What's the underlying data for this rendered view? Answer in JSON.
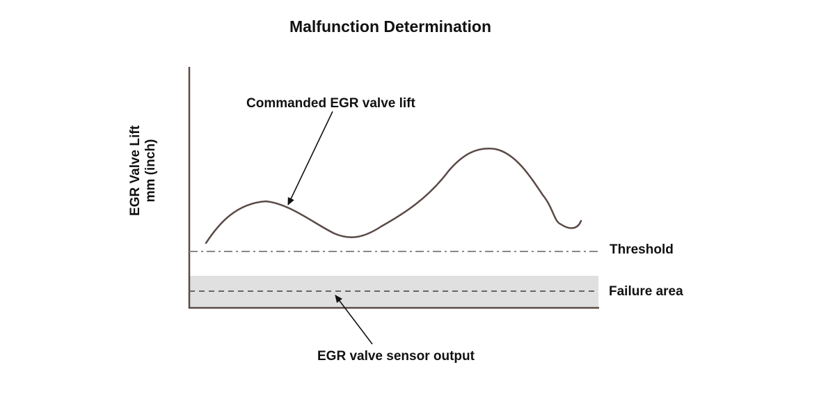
{
  "title": "Malfunction Determination",
  "axis": {
    "y_label_line1": "EGR Valve Lift",
    "y_label_line2": "mm (inch)"
  },
  "labels": {
    "commanded": "Commanded EGR valve lift",
    "threshold": "Threshold",
    "failure_area": "Failure area",
    "sensor_output": "EGR valve sensor output"
  },
  "colors": {
    "axis": "#5a4a46",
    "commanded_curve": "#5a4a46",
    "threshold_line": "#888888",
    "failure_fill": "#e0e0e0",
    "sensor_line": "#666666",
    "text": "#111111"
  }
}
